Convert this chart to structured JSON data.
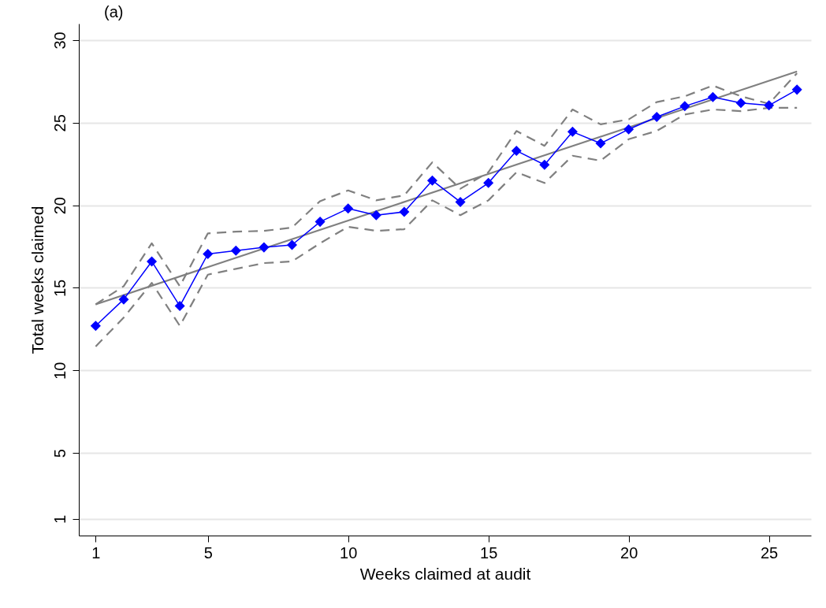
{
  "chart_data": {
    "type": "line",
    "title": "(a)",
    "xlabel": "Weeks claimed at audit",
    "ylabel": "Total weeks claimed",
    "x": [
      1,
      2,
      3,
      4,
      5,
      6,
      7,
      8,
      9,
      10,
      11,
      12,
      13,
      14,
      15,
      16,
      17,
      18,
      19,
      20,
      21,
      22,
      23,
      24,
      25,
      26
    ],
    "xlim": [
      0.4,
      26.5
    ],
    "xticks": [
      1,
      5,
      10,
      15,
      20,
      25
    ],
    "ylim": [
      0,
      31
    ],
    "yticks": [
      1,
      5,
      10,
      15,
      20,
      25,
      30
    ],
    "grid": "y",
    "series": [
      {
        "color": "#808080",
        "line_style": "dashed",
        "marker": "none",
        "values": [
          14.0,
          15.1,
          17.7,
          15.1,
          18.3,
          18.4,
          18.45,
          18.65,
          20.25,
          20.9,
          20.3,
          20.6,
          22.6,
          21.0,
          22.0,
          24.5,
          23.6,
          25.8,
          24.9,
          25.2,
          26.25,
          26.6,
          27.25,
          26.6,
          26.15,
          28.0
        ]
      },
      {
        "color": "#808080",
        "line_style": "dashed",
        "marker": "none",
        "values": [
          11.45,
          13.2,
          15.3,
          12.7,
          15.8,
          16.15,
          16.5,
          16.6,
          17.7,
          18.7,
          18.45,
          18.55,
          20.3,
          19.4,
          20.3,
          22.0,
          21.35,
          23.0,
          22.7,
          24.0,
          24.5,
          25.5,
          25.8,
          25.7,
          25.9,
          25.9
        ]
      },
      {
        "color": "#808080",
        "line_style": "solid",
        "marker": "none",
        "x": [
          1,
          26
        ],
        "values": [
          14.0,
          28.1
        ]
      },
      {
        "color": "#0000ff",
        "line_style": "solid",
        "marker": "diamond",
        "values": [
          12.7,
          14.3,
          16.6,
          13.9,
          17.05,
          17.25,
          17.45,
          17.6,
          19.0,
          19.8,
          19.4,
          19.6,
          21.5,
          20.2,
          21.35,
          23.3,
          22.45,
          24.45,
          23.75,
          24.6,
          25.35,
          26.0,
          26.55,
          26.2,
          26.05,
          27.0
        ]
      }
    ]
  }
}
